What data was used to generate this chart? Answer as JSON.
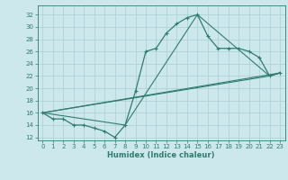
{
  "xlabel": "Humidex (Indice chaleur)",
  "bg_color": "#cce8ec",
  "line_color": "#2e7d6e",
  "grid_color": "#aacdd4",
  "xlim": [
    -0.5,
    23.5
  ],
  "ylim": [
    11.5,
    33.5
  ],
  "xticks": [
    0,
    1,
    2,
    3,
    4,
    5,
    6,
    7,
    8,
    9,
    10,
    11,
    12,
    13,
    14,
    15,
    16,
    17,
    18,
    19,
    20,
    21,
    22,
    23
  ],
  "yticks": [
    12,
    14,
    16,
    18,
    20,
    22,
    24,
    26,
    28,
    30,
    32
  ],
  "series1_x": [
    0,
    1,
    2,
    3,
    4,
    5,
    6,
    7,
    8,
    9,
    10,
    11,
    12,
    13,
    14,
    15,
    16,
    17,
    18,
    19,
    20,
    21,
    22,
    23
  ],
  "series1_y": [
    16,
    15,
    15,
    14,
    14,
    13.5,
    13,
    12,
    14,
    19.5,
    26,
    26.5,
    29,
    30.5,
    31.5,
    32,
    28.5,
    26.5,
    26.5,
    26.5,
    26,
    25,
    22,
    22.5
  ],
  "series2_x": [
    0,
    22,
    23
  ],
  "series2_y": [
    16,
    22,
    22.5
  ],
  "series3_x": [
    0,
    8,
    15,
    22,
    23
  ],
  "series3_y": [
    16,
    14,
    32,
    22,
    22.5
  ],
  "series4_x": [
    0,
    23
  ],
  "series4_y": [
    16,
    22.5
  ]
}
